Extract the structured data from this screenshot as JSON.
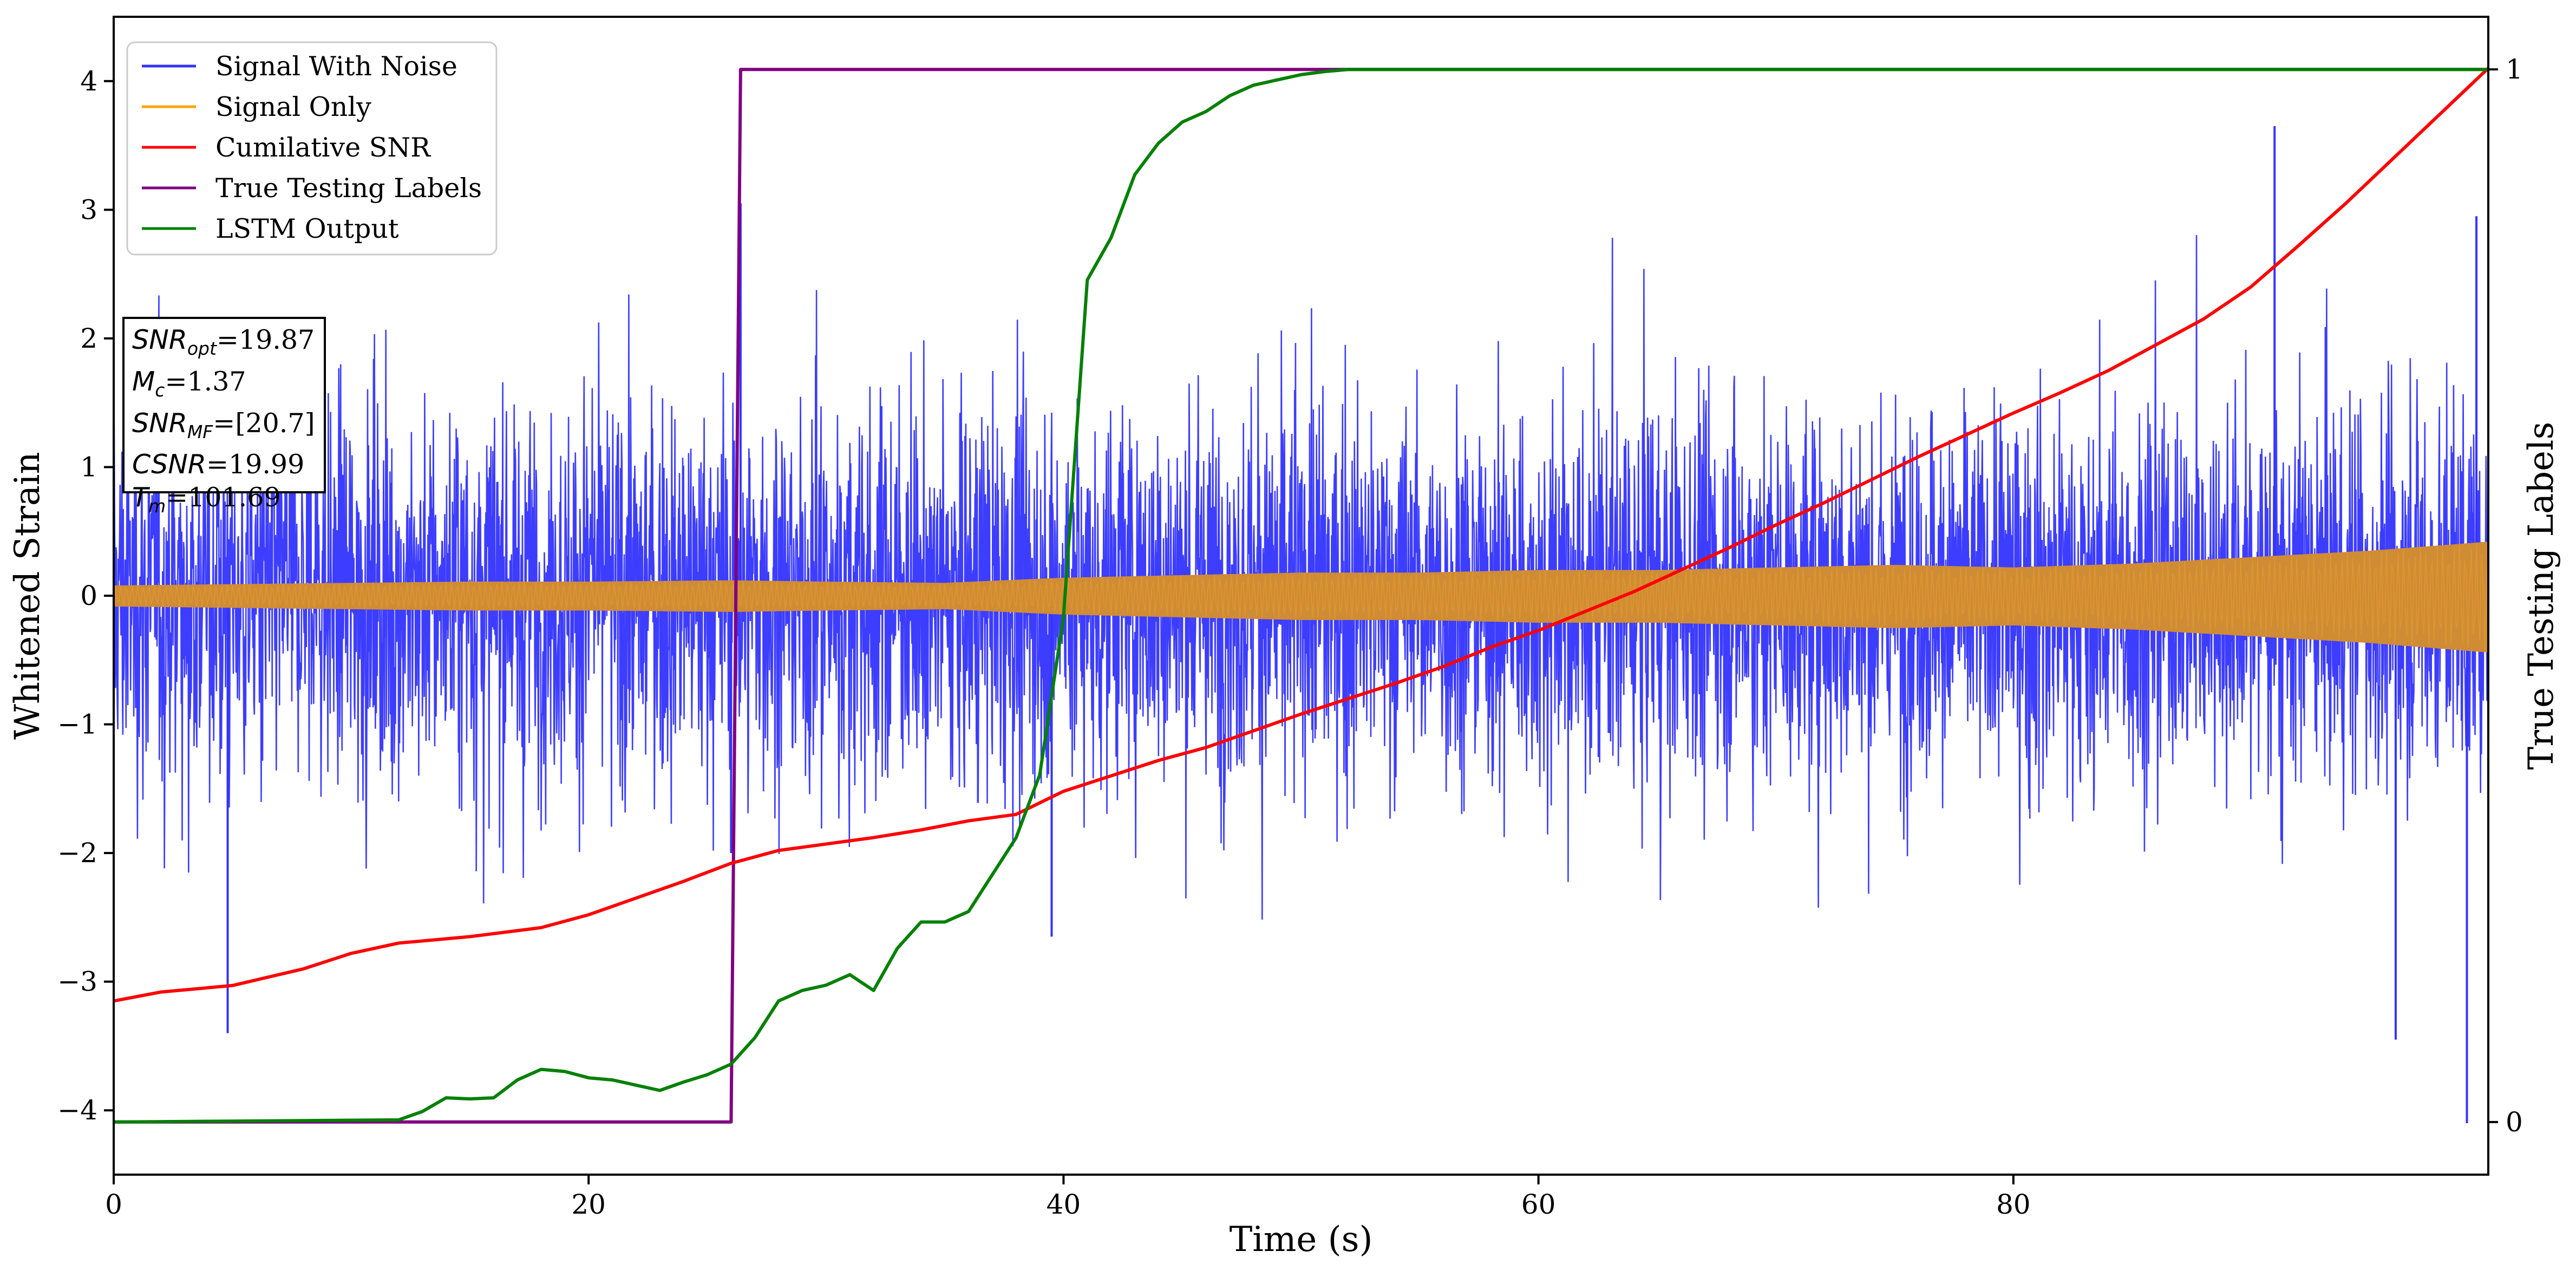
{
  "chart_data": {
    "type": "line",
    "xlabel": "Time (s)",
    "ylabel_left": "Whitened Strain",
    "ylabel_right": "True Testing Labels",
    "xlim": [
      0,
      100
    ],
    "ylim_left": [
      -4.5,
      4.5
    ],
    "ylim_right": [
      -0.05,
      1.05
    ],
    "x_ticks": [
      0,
      20,
      40,
      60,
      80
    ],
    "x_tick_labels": [
      "0",
      "20",
      "40",
      "60",
      "80"
    ],
    "y_left_ticks": [
      -4,
      -3,
      -2,
      -1,
      0,
      1,
      2,
      3,
      4
    ],
    "y_left_tick_labels": [
      "−4",
      "−3",
      "−2",
      "−1",
      "0",
      "1",
      "2",
      "3",
      "4"
    ],
    "y_right_ticks": [
      0,
      1
    ],
    "y_right_tick_labels": [
      "0",
      "1"
    ],
    "grid": false,
    "legend": {
      "placement": "top-left",
      "entries": [
        {
          "name": "Signal With Noise",
          "color": "#3333ff"
        },
        {
          "name": "Signal Only",
          "color": "#ffa500"
        },
        {
          "name": "Cumilative SNR",
          "color": "#ff0000"
        },
        {
          "name": "True Testing Labels",
          "color": "#800080"
        },
        {
          "name": "LSTM Output",
          "color": "#008000"
        }
      ]
    },
    "annotation": {
      "lines": [
        {
          "label": "SNR",
          "sub": "opt",
          "value": "=19.87"
        },
        {
          "label": "M",
          "sub": "c",
          "value": "=1.37"
        },
        {
          "label": "SNR",
          "sub": "MF",
          "value": "=[20.7]"
        },
        {
          "label": "CSNR",
          "sub": "",
          "value": "=19.99"
        },
        {
          "label": "T",
          "sub": "m",
          "value": "=101.69"
        }
      ]
    },
    "series": [
      {
        "name": "Signal With Noise",
        "axis": "left",
        "style": "noise-band",
        "color": "#3333ff",
        "typical_amplitude": 1.5,
        "max_spikes": [
          [
            4.8,
            -3.4
          ],
          [
            26.4,
            3.05
          ],
          [
            26.0,
            -2.0
          ],
          [
            39.5,
            -2.65
          ],
          [
            91.0,
            3.65
          ],
          [
            96.1,
            -3.45
          ],
          [
            99.1,
            -4.1
          ],
          [
            99.5,
            2.95
          ]
        ]
      },
      {
        "name": "Signal Only",
        "axis": "left",
        "style": "envelope",
        "color": "#ffa500",
        "fill_color": "#d08b35",
        "x": [
          0,
          10,
          15,
          20,
          26,
          30,
          35,
          40,
          45,
          50,
          55,
          60,
          65,
          70,
          75,
          80,
          85,
          90,
          95,
          100
        ],
        "amplitude": [
          0.08,
          0.1,
          0.11,
          0.11,
          0.12,
          0.11,
          0.1,
          0.14,
          0.16,
          0.18,
          0.18,
          0.2,
          0.2,
          0.22,
          0.24,
          0.22,
          0.25,
          0.3,
          0.35,
          0.42
        ]
      },
      {
        "name": "Cumilative SNR",
        "axis": "left",
        "color": "#ff0000",
        "x": [
          0,
          2,
          5,
          8,
          10,
          12,
          15,
          18,
          20,
          22,
          24,
          26,
          28,
          30,
          32,
          34,
          36,
          38,
          40,
          42,
          44,
          46,
          48,
          50,
          52,
          54,
          56,
          58,
          60,
          62,
          64,
          66,
          68,
          70,
          72,
          74,
          76,
          78,
          80,
          82,
          84,
          86,
          88,
          90,
          92,
          94,
          96,
          98,
          100
        ],
        "y": [
          -3.15,
          -3.08,
          -3.03,
          -2.9,
          -2.78,
          -2.7,
          -2.65,
          -2.58,
          -2.48,
          -2.35,
          -2.22,
          -2.08,
          -1.98,
          -1.93,
          -1.88,
          -1.82,
          -1.75,
          -1.7,
          -1.52,
          -1.4,
          -1.28,
          -1.18,
          -1.05,
          -0.92,
          -0.8,
          -0.68,
          -0.55,
          -0.4,
          -0.27,
          -0.12,
          0.03,
          0.2,
          0.37,
          0.55,
          0.72,
          0.9,
          1.08,
          1.25,
          1.42,
          1.58,
          1.75,
          1.95,
          2.15,
          2.4,
          2.72,
          3.05,
          3.4,
          3.75,
          4.1
        ]
      },
      {
        "name": "True Testing Labels",
        "axis": "right",
        "color": "#800080",
        "x": [
          0,
          26.0,
          26.4,
          100
        ],
        "y": [
          0,
          0,
          1,
          1
        ]
      },
      {
        "name": "LSTM Output",
        "axis": "right",
        "color": "#008000",
        "x": [
          0,
          12,
          13,
          14,
          15,
          16,
          17,
          18,
          19,
          20,
          21,
          22,
          23,
          24,
          25,
          26,
          27,
          28,
          29,
          30,
          31,
          32,
          33,
          34,
          35,
          36,
          37,
          38,
          39,
          40,
          41,
          42,
          43,
          44,
          45,
          46,
          47,
          48,
          49,
          50,
          51,
          52,
          54,
          100
        ],
        "y": [
          0,
          0.002,
          0.01,
          0.023,
          0.022,
          0.023,
          0.04,
          0.05,
          0.048,
          0.042,
          0.04,
          0.035,
          0.03,
          0.038,
          0.045,
          0.055,
          0.08,
          0.115,
          0.125,
          0.13,
          0.14,
          0.125,
          0.165,
          0.19,
          0.19,
          0.2,
          0.235,
          0.27,
          0.33,
          0.48,
          0.8,
          0.84,
          0.9,
          0.93,
          0.95,
          0.96,
          0.975,
          0.985,
          0.99,
          0.995,
          0.998,
          1.0,
          1.0,
          1.0
        ]
      }
    ]
  }
}
